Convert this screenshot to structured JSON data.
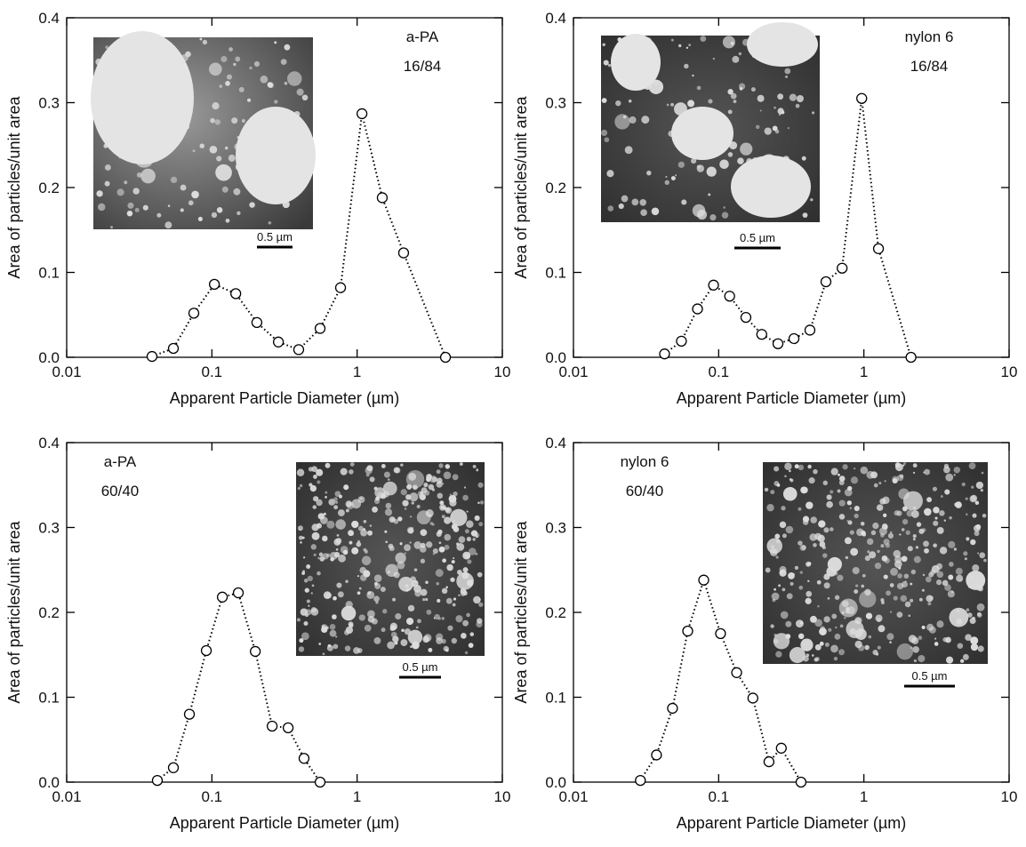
{
  "chart_data": [
    {
      "type": "scatter",
      "xlabel": "Apparent Particle Diameter (µm)",
      "ylabel": "Area of particles/unit area",
      "annotation": [
        "a-PA",
        "16/84"
      ],
      "inset_scale": "0.5 µm",
      "log_x": true,
      "xlim": [
        0.01,
        10
      ],
      "xticks": [
        0.01,
        0.1,
        1,
        10
      ],
      "ylim": [
        0,
        0.4
      ],
      "yticks": [
        {
          "value": 0,
          "label": "0.0"
        },
        0.1,
        0.2,
        0.3,
        0.4
      ],
      "x": [
        0.0387,
        0.0543,
        0.0751,
        0.104,
        0.146,
        0.204,
        0.287,
        0.396,
        0.556,
        0.769,
        1.08,
        1.49,
        2.09,
        4.06
      ],
      "values": [
        0.001,
        0.0105,
        0.052,
        0.086,
        0.075,
        0.041,
        0.018,
        0.009,
        0.034,
        0.082,
        0.287,
        0.188,
        0.123,
        0
      ]
    },
    {
      "type": "scatter",
      "xlabel": "Apparent Particle Diameter (µm)",
      "ylabel": "Area of particles/unit area",
      "annotation": [
        "nylon 6",
        "16/84"
      ],
      "inset_scale": "0.5 µm",
      "log_x": true,
      "xlim": [
        0.01,
        10
      ],
      "xticks": [
        0.01,
        0.1,
        1,
        10
      ],
      "ylim": [
        0,
        0.4
      ],
      "yticks": [
        {
          "value": 0,
          "label": "0.0"
        },
        0.1,
        0.2,
        0.3,
        0.4
      ],
      "x": [
        0.0424,
        0.0554,
        0.0715,
        0.0922,
        0.119,
        0.154,
        0.198,
        0.256,
        0.33,
        0.425,
        0.548,
        0.708,
        0.966,
        1.26,
        2.11
      ],
      "values": [
        0.004,
        0.019,
        0.057,
        0.085,
        0.072,
        0.047,
        0.027,
        0.016,
        0.022,
        0.032,
        0.089,
        0.105,
        0.305,
        0.128,
        0
      ]
    },
    {
      "type": "scatter",
      "xlabel": "Apparent Particle Diameter (µm)",
      "ylabel": "Area of particles/unit area",
      "annotation": [
        "a-PA",
        "60/40"
      ],
      "inset_scale": "0.5 µm",
      "log_x": true,
      "xlim": [
        0.01,
        10
      ],
      "xticks": [
        0.01,
        0.1,
        1,
        10
      ],
      "ylim": [
        0,
        0.4
      ],
      "yticks": [
        {
          "value": 0,
          "label": "0.0"
        },
        0.1,
        0.2,
        0.3,
        0.4
      ],
      "x": [
        0.0421,
        0.0543,
        0.07,
        0.0915,
        0.118,
        0.152,
        0.199,
        0.26,
        0.335,
        0.431,
        0.556
      ],
      "values": [
        0.002,
        0.017,
        0.08,
        0.155,
        0.218,
        0.223,
        0.154,
        0.066,
        0.064,
        0.028,
        0
      ]
    },
    {
      "type": "scatter",
      "xlabel": "Apparent Particle Diameter (µm)",
      "ylabel": "Area of particles/unit area",
      "annotation": [
        "nylon 6",
        "60/40"
      ],
      "inset_scale": "0.5 µm",
      "log_x": true,
      "xlim": [
        0.01,
        10
      ],
      "xticks": [
        0.01,
        0.1,
        1,
        10
      ],
      "ylim": [
        0,
        0.4
      ],
      "yticks": [
        {
          "value": 0,
          "label": "0.0"
        },
        0.1,
        0.2,
        0.3,
        0.4
      ],
      "x": [
        0.0289,
        0.0373,
        0.0481,
        0.0612,
        0.0789,
        0.103,
        0.133,
        0.172,
        0.222,
        0.27,
        0.369
      ],
      "values": [
        0.002,
        0.032,
        0.087,
        0.178,
        0.238,
        0.175,
        0.129,
        0.099,
        0.024,
        0.04,
        0
      ]
    }
  ]
}
